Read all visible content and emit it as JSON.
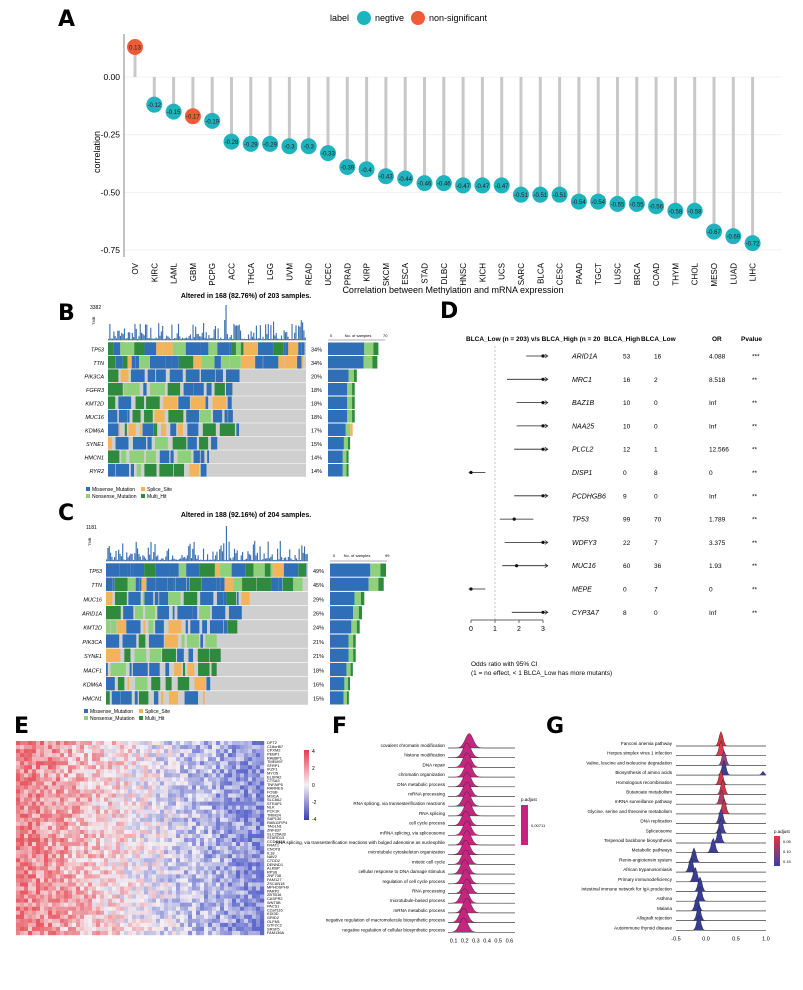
{
  "panels": {
    "A": "A",
    "B": "B",
    "C": "C",
    "D": "D",
    "E": "E",
    "F": "F",
    "G": "G"
  },
  "chart_data": [
    {
      "type": "lollipop",
      "panel": "A",
      "legend_title": "label",
      "legend": [
        {
          "name": "negtive",
          "color": "#1fb3bd"
        },
        {
          "name": "non-significant",
          "color": "#ef5b36"
        }
      ],
      "ylabel": "correlation",
      "xlabel": "Correlation between Methylation and mRNA expression",
      "ylim": [
        -0.75,
        0.14
      ],
      "yticks": [
        "0.00",
        "-0.25",
        "-0.50",
        "-0.75"
      ],
      "categories": [
        "OV",
        "KIRC",
        "LAML",
        "GBM",
        "PCPG",
        "ACC",
        "THCA",
        "LGG",
        "UVM",
        "READ",
        "UCEC",
        "PRAD",
        "KIRP",
        "SKCM",
        "ESCA",
        "STAD",
        "DLBC",
        "HNSC",
        "KICH",
        "UCS",
        "SARC",
        "BLCA",
        "CESC",
        "PAAD",
        "TGCT",
        "LUSC",
        "BRCA",
        "COAD",
        "THYM",
        "CHOL",
        "MESO",
        "LUAD",
        "LIHC"
      ],
      "values": [
        0.13,
        -0.12,
        -0.15,
        -0.17,
        -0.19,
        -0.28,
        -0.29,
        -0.29,
        -0.3,
        -0.3,
        -0.33,
        -0.39,
        -0.4,
        -0.43,
        -0.44,
        -0.46,
        -0.46,
        -0.47,
        -0.47,
        -0.47,
        -0.51,
        -0.51,
        -0.51,
        -0.54,
        -0.54,
        -0.55,
        -0.55,
        -0.56,
        -0.58,
        -0.58,
        -0.67,
        -0.69,
        -0.72
      ],
      "labels": [
        "0.13",
        "-0.12",
        "-0.15",
        "-0.17",
        "-0.19",
        "-0.28",
        "-0.29",
        "-0.29",
        "-0.3",
        "-0.3",
        "-0.33",
        "-0.39",
        "-0.4",
        "-0.43",
        "-0.44",
        "-0.46",
        "-0.46",
        "-0.47",
        "-0.47",
        "-0.47",
        "-0.51",
        "-0.51",
        "-0.51",
        "-0.54",
        "-0.54",
        "-0.55",
        "-0.55",
        "-0.56",
        "-0.58",
        "-0.58",
        "-0.67",
        "-0.69",
        "-0.72"
      ],
      "significant": [
        false,
        true,
        true,
        false,
        true,
        true,
        true,
        true,
        true,
        true,
        true,
        true,
        true,
        true,
        true,
        true,
        true,
        true,
        true,
        true,
        true,
        true,
        true,
        true,
        true,
        true,
        true,
        true,
        true,
        true,
        true,
        true,
        true
      ]
    },
    {
      "type": "oncoplot",
      "panel": "B",
      "title": "Altered in 168 (82.76%) of 203 samples.",
      "tmb_label": "TMB",
      "tmb_max": "3382",
      "bar_axis_label": "No. of samples",
      "bar_axis_ticks": [
        "0",
        "70"
      ],
      "genes": [
        "TP53",
        "TTN",
        "PIK3CA",
        "FGFR3",
        "KMT2D",
        "MUC16",
        "KDM6A",
        "SYNE1",
        "HMCN1",
        "RYR2"
      ],
      "percents": [
        "34%",
        "34%",
        "20%",
        "18%",
        "18%",
        "18%",
        "17%",
        "15%",
        "14%",
        "14%"
      ],
      "legend": [
        "Missense_Mutation",
        "Splice_Site",
        "Nonsense_Mutation",
        "Multi_Hit"
      ]
    },
    {
      "type": "oncoplot",
      "panel": "C",
      "title": "Altered in 188 (92.16%) of 204 samples.",
      "tmb_label": "TMB",
      "tmb_max": "1181",
      "bar_axis_label": "No. of samples",
      "bar_axis_ticks": [
        "0",
        "99"
      ],
      "genes": [
        "TP53",
        "TTN",
        "MUC16",
        "ARID1A",
        "KMT2D",
        "PIK3CA",
        "SYNE1",
        "MACF1",
        "KDM6A",
        "HMCN1"
      ],
      "percents": [
        "49%",
        "45%",
        "29%",
        "26%",
        "24%",
        "21%",
        "21%",
        "18%",
        "16%",
        "15%"
      ],
      "legend": [
        "Missense_Mutation",
        "Splice_Site",
        "Nonsense_Mutation",
        "Multi_Hit"
      ]
    },
    {
      "type": "forest",
      "panel": "D",
      "header": {
        "title": "BLCA_Low (n = 203) v/s BLCA_High (n = 20",
        "c1": "BLCA_High",
        "c2": "BLCA_Low",
        "c3": "OR",
        "c4": "Pvalue"
      },
      "rows": [
        {
          "gene": "ARID1A",
          "high": "53",
          "low": "16",
          "or": "4.088",
          "p": "***",
          "est": 3,
          "lo": 2.3,
          "hi": 3.2
        },
        {
          "gene": "MRC1",
          "high": "16",
          "low": "2",
          "or": "8.518",
          "p": "**",
          "est": 3,
          "lo": 1.5,
          "hi": 3.2
        },
        {
          "gene": "BAZ1B",
          "high": "10",
          "low": "0",
          "or": "Inf",
          "p": "**",
          "est": 3,
          "lo": 1.9,
          "hi": 3.2
        },
        {
          "gene": "NAA25",
          "high": "10",
          "low": "0",
          "or": "Inf",
          "p": "**",
          "est": 3,
          "lo": 1.9,
          "hi": 3.2
        },
        {
          "gene": "PLCL2",
          "high": "12",
          "low": "1",
          "or": "12.566",
          "p": "**",
          "est": 3,
          "lo": 1.8,
          "hi": 3.2
        },
        {
          "gene": "DISP1",
          "high": "0",
          "low": "8",
          "or": "0",
          "p": "**",
          "est": 0,
          "lo": -0.1,
          "hi": 0.6
        },
        {
          "gene": "PCDHGB6",
          "high": "9",
          "low": "0",
          "or": "Inf",
          "p": "**",
          "est": 3,
          "lo": 1.8,
          "hi": 3.2
        },
        {
          "gene": "TP53",
          "high": "99",
          "low": "70",
          "or": "1.789",
          "p": "**",
          "est": 1.8,
          "lo": 1.2,
          "hi": 2.6
        },
        {
          "gene": "WDFY3",
          "high": "22",
          "low": "7",
          "or": "3.375",
          "p": "**",
          "est": 3,
          "lo": 1.4,
          "hi": 3.2
        },
        {
          "gene": "MUC16",
          "high": "60",
          "low": "36",
          "or": "1.93",
          "p": "**",
          "est": 1.9,
          "lo": 1.3,
          "hi": 3.2
        },
        {
          "gene": "MEPE",
          "high": "0",
          "low": "7",
          "or": "0",
          "p": "**",
          "est": 0,
          "lo": -0.1,
          "hi": 0.6
        },
        {
          "gene": "CYP3A7",
          "high": "8",
          "low": "0",
          "or": "Inf",
          "p": "**",
          "est": 3,
          "lo": 1.7,
          "hi": 3.2
        }
      ],
      "xticks": [
        "0",
        "1",
        "2",
        "3"
      ],
      "note1": "Odds ratio with 95% CI",
      "note2": "(1 = no effect, < 1 BLCA_Low has more mutants)"
    },
    {
      "type": "heatmap",
      "panel": "E",
      "scale_ticks": [
        "4",
        "2",
        "0",
        "-2",
        "-4"
      ],
      "genes": [
        "DPT2",
        "C18orf87",
        "CPXM2",
        "PEBP1",
        "RAB8P1",
        "TMEM97",
        "SFRP1",
        "IKZF1",
        "MYO5",
        "ELSPA2",
        "CTSA3",
        "TNFAIP5",
        "RARRES",
        "FOSB",
        "MSI1A",
        "SLC8A2",
        "STEAP1",
        "NLK",
        "PCK1K",
        "TRIM24",
        "SAP130",
        "RAB11FIP4",
        "TAGLN1",
        "ZNF837",
        "SLC25A33",
        "STARD13",
        "CCDC138",
        "FRAT1",
        "CNOT8",
        "IL18",
        "NAV2",
        "CTDD2",
        "DENND1",
        "ALKBP",
        "RPS6",
        "ZNF738",
        "FAM127",
        "ZSCAN18",
        "MPHOSPH9",
        "PARP2",
        "ZBTB16",
        "CASPR2",
        "WNT5B",
        "PACS1",
        "C2orf116",
        "KDI3D",
        "GRID2",
        "OLFM1",
        "GTF2C2",
        "SRSF5",
        "FAM136A"
      ]
    },
    {
      "type": "ridgeline",
      "panel": "F",
      "categories": [
        "covalent chromatin modification",
        "histone modification",
        "DNA repair",
        "chromatin organization",
        "DNA metabolic process",
        "mRNA processing",
        "RNA splicing, via transesterification reactions",
        "RNA splicing",
        "cell cycle process",
        "mRNA splicing, via spliceosome",
        "RNA splicing, via transesterification reactions with bulged adenosine as nucleophile",
        "microtubule cytoskeleton organization",
        "mitotic cell cycle",
        "cellular response to DNA damage stimulus",
        "regulation of cell cycle process",
        "RNA processing",
        "microtubule-based process",
        "mRNA metabolic process",
        "negative regulation of macromolecule biosynthetic process",
        "negative regulation of cellular biosynthetic process"
      ],
      "peaks": [
        0.24,
        0.22,
        0.22,
        0.23,
        0.22,
        0.22,
        0.22,
        0.23,
        0.21,
        0.22,
        0.22,
        0.21,
        0.21,
        0.2,
        0.21,
        0.22,
        0.2,
        0.22,
        0.19,
        0.19
      ],
      "xticks": [
        "0.1",
        "0.2",
        "0.3",
        "0.4",
        "0.5",
        "0.6"
      ],
      "xlim": [
        0.05,
        0.65
      ],
      "legend_title": "p.adjust",
      "legend_value": "0.00711",
      "color": "#c4267f"
    },
    {
      "type": "ridgeline",
      "panel": "G",
      "categories": [
        "Fanconi anemia pathway",
        "Herpes simplex virus 1 infection",
        "Valine, leucine and isoleucine degradation",
        "Biosynthesis of amino acids",
        "Homologous recombination",
        "Butanoate metabolism",
        "mRNA surveillance pathway",
        "Glycine, serine and threonine metabolism",
        "DNA replication",
        "Spliceosome",
        "Terpenoid backbone biosynthesis",
        "Metabolic pathways",
        "Renin-angiotensin system",
        "African trypanosomiasis",
        "Primary immunodeficiency",
        "Intestinal immune network for IgA production",
        "Asthma",
        "Malaria",
        "Allograft rejection",
        "Autoimmune thyroid disease"
      ],
      "peaks": [
        0.25,
        0.25,
        0.3,
        0.3,
        0.25,
        0.28,
        0.26,
        0.3,
        0.25,
        0.25,
        0.22,
        0.12,
        -0.2,
        -0.25,
        -0.18,
        -0.1,
        -0.1,
        -0.15,
        -0.12,
        -0.12
      ],
      "colors": [
        "#d8323f",
        "#dd3a4f",
        "#9c3f7e",
        "#3c3d9a",
        "#d23449",
        "#d23449",
        "#b13a66",
        "#cb364e",
        "#46409a",
        "#46409a",
        "#3f3d9b",
        "#3f3d9b",
        "#393c97",
        "#393c97",
        "#393c97",
        "#393c97",
        "#393c97",
        "#393c97",
        "#393c97",
        "#393c97"
      ],
      "xticks": [
        "-0.5",
        "0.0",
        "0.5",
        "1.0"
      ],
      "xlim": [
        -0.5,
        1.0
      ],
      "legend_title": "p.adjust",
      "legend_ticks": [
        "0.05",
        "0.10",
        "0.15"
      ]
    }
  ]
}
